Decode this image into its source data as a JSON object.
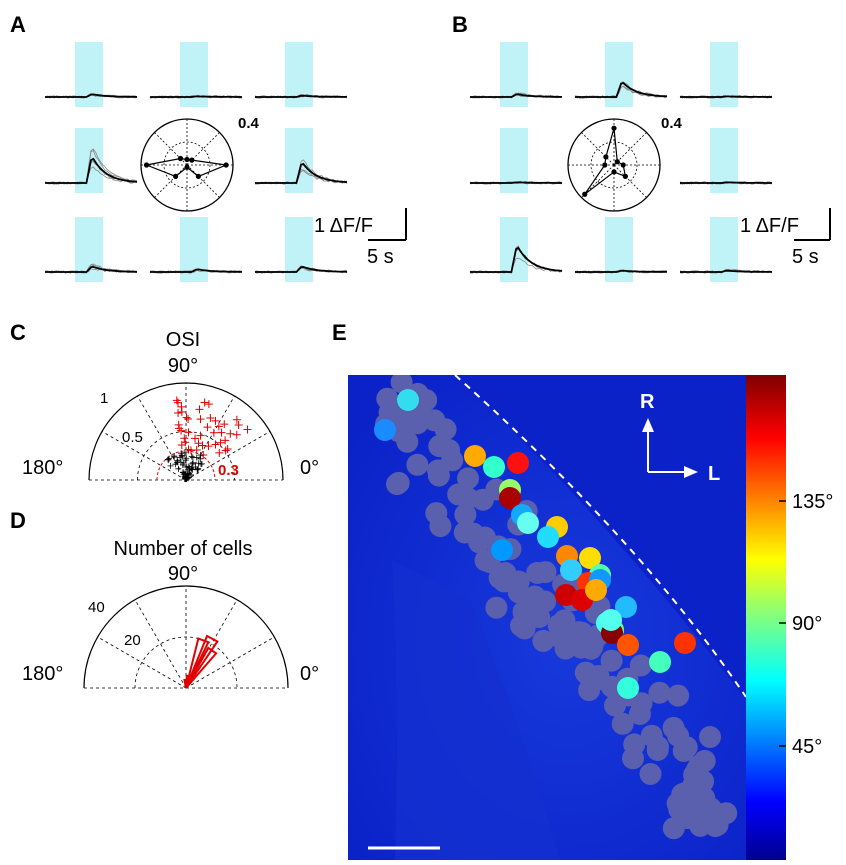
{
  "panels": {
    "a": "A",
    "b": "B",
    "c": "C",
    "d": "D",
    "e": "E"
  },
  "panel_a": {
    "polar_max_label": "0.4",
    "scale_y_label": "1 ΔF/F",
    "scale_x_label": "5 s"
  },
  "panel_b": {
    "polar_max_label": "0.4",
    "scale_y_label": "1 ΔF/F",
    "scale_x_label": "5 s"
  },
  "panel_c": {
    "title": "OSI",
    "angle_top": "90°",
    "angle_left": "180°",
    "angle_right": "0°",
    "r_labels": [
      "1",
      "0.5"
    ],
    "threshold_label": "0.3"
  },
  "panel_d": {
    "title": "Number of cells",
    "angle_top": "90°",
    "angle_left": "180°",
    "angle_right": "0°",
    "r_labels": [
      "40",
      "20"
    ]
  },
  "panel_e": {
    "arrow_up_label": "R",
    "arrow_right_label": "L",
    "colorbar_ticks": [
      "135°",
      "90°",
      "45°"
    ]
  },
  "colors": {
    "stim_shade": "#bff3f7",
    "map_bg": "#0a22c8",
    "gray_cell": "#5a5fae",
    "red": "#e00000"
  }
}
